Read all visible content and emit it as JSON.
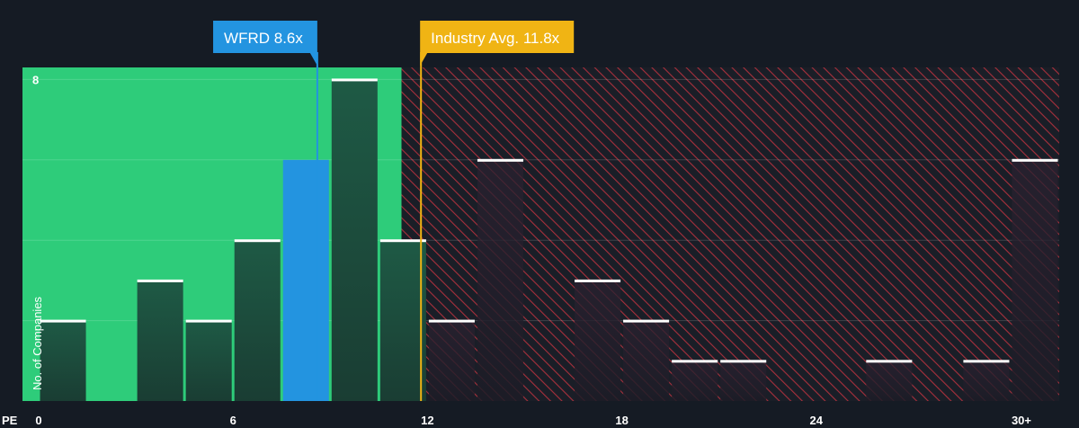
{
  "chart_data": {
    "type": "bar",
    "title": "",
    "xlabel": "PE",
    "ylabel": "No. of Companies",
    "x_ticks": [
      {
        "value": 0,
        "label": "0"
      },
      {
        "value": 6,
        "label": "6"
      },
      {
        "value": 12,
        "label": "12"
      },
      {
        "value": 18,
        "label": "18"
      },
      {
        "value": 24,
        "label": "24"
      },
      {
        "value": 30,
        "label": "30+"
      }
    ],
    "xlim": [
      -0.5,
      31.5
    ],
    "ylim": [
      0,
      8.3
    ],
    "y_ticks": [
      {
        "value": 8,
        "label": "8"
      }
    ],
    "gridlines_y": [
      2,
      4,
      6,
      8
    ],
    "bin_width": 1.5,
    "bins": [
      {
        "start": 0.0,
        "count": 2
      },
      {
        "start": 1.5,
        "count": 0
      },
      {
        "start": 3.0,
        "count": 3
      },
      {
        "start": 4.5,
        "count": 2
      },
      {
        "start": 6.0,
        "count": 4
      },
      {
        "start": 7.5,
        "count": 6,
        "highlight": true
      },
      {
        "start": 9.0,
        "count": 8
      },
      {
        "start": 10.5,
        "count": 4
      },
      {
        "start": 12.0,
        "count": 2
      },
      {
        "start": 13.5,
        "count": 6
      },
      {
        "start": 15.0,
        "count": 0
      },
      {
        "start": 16.5,
        "count": 3
      },
      {
        "start": 18.0,
        "count": 2
      },
      {
        "start": 19.5,
        "count": 1
      },
      {
        "start": 21.0,
        "count": 1
      },
      {
        "start": 22.5,
        "count": 0
      },
      {
        "start": 24.0,
        "count": 0
      },
      {
        "start": 25.5,
        "count": 1
      },
      {
        "start": 27.0,
        "count": 0
      },
      {
        "start": 28.5,
        "count": 1
      },
      {
        "start": 30.0,
        "count": 6
      }
    ],
    "company": {
      "label": "WFRD 8.6x",
      "value": 8.6,
      "color": "#2394e0"
    },
    "industry_avg": {
      "label": "Industry Avg. 11.8x",
      "value": 11.8,
      "color": "#f0b414"
    },
    "zones": {
      "below_avg_color": "#2ecc7a",
      "above_avg_color": "#b02a36"
    },
    "colors": {
      "background": "#151b24",
      "bar_dark": "#1d4a3a",
      "bar_highlight": "#2394e0",
      "bar_cap": "#ffffff"
    }
  }
}
